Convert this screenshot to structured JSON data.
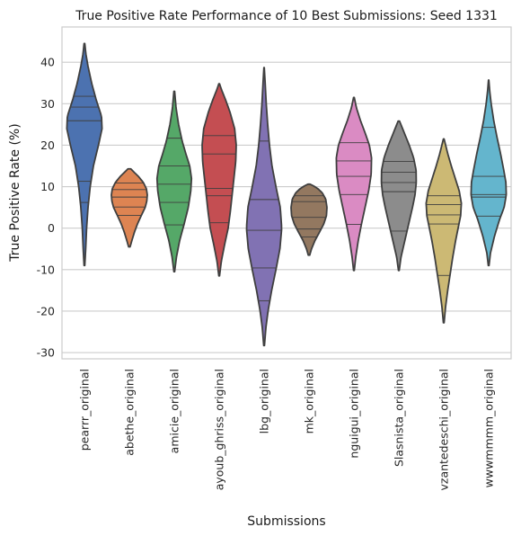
{
  "chart_data": {
    "type": "violin",
    "title": "True Positive Rate Performance of 10 Best Submissions: Seed 1331",
    "xlabel": "Submissions",
    "ylabel": "True Positive Rate (%)",
    "ylim": [
      -31.5,
      48.5
    ],
    "yticks": [
      -30,
      -20,
      -10,
      0,
      10,
      20,
      30,
      40
    ],
    "grid": true,
    "inner": "quartile",
    "categories": [
      "pearrr_original",
      "abethe_original",
      "amicie_original",
      "ayoub_ghriss_original",
      "lbg_original",
      "mk_original",
      "nguigui_original",
      "Slasnista_original",
      "vzantedeschi_original",
      "wwwmmmm_original"
    ],
    "colors": [
      "#4c72b0",
      "#dd8452",
      "#55a868",
      "#c44e52",
      "#8172b3",
      "#937860",
      "#da8bc3",
      "#8c8c8c",
      "#ccb974",
      "#64b5cd"
    ],
    "violins": [
      {
        "min": -9,
        "max": 44.5,
        "width": [
          [
            -9,
            0.02
          ],
          [
            -5,
            0.07
          ],
          [
            0,
            0.12
          ],
          [
            5,
            0.2
          ],
          [
            10,
            0.32
          ],
          [
            15,
            0.5
          ],
          [
            20,
            0.78
          ],
          [
            24,
            0.98
          ],
          [
            27,
            0.95
          ],
          [
            31,
            0.65
          ],
          [
            35,
            0.4
          ],
          [
            39,
            0.2
          ],
          [
            42,
            0.08
          ],
          [
            44.5,
            0.02
          ]
        ],
        "lines": [
          11.3,
          25.9,
          31.8,
          6.2,
          29.2
        ]
      },
      {
        "min": -4.5,
        "max": 14.3,
        "width": [
          [
            -4.5,
            0.04
          ],
          [
            -3,
            0.14
          ],
          [
            -1,
            0.28
          ],
          [
            1,
            0.45
          ],
          [
            3,
            0.66
          ],
          [
            5,
            0.88
          ],
          [
            6.5,
            0.97
          ],
          [
            8,
            1.0
          ],
          [
            9.5,
            0.95
          ],
          [
            11,
            0.78
          ],
          [
            12.5,
            0.5
          ],
          [
            13.5,
            0.26
          ],
          [
            14.3,
            0.08
          ]
        ],
        "lines": [
          5.1,
          7.5,
          9.3,
          3.1,
          10.9
        ]
      },
      {
        "min": -10.5,
        "max": 33,
        "width": [
          [
            -10.5,
            0.02
          ],
          [
            -7,
            0.12
          ],
          [
            -3,
            0.3
          ],
          [
            1,
            0.55
          ],
          [
            5,
            0.78
          ],
          [
            9,
            0.92
          ],
          [
            12,
            0.96
          ],
          [
            15,
            0.86
          ],
          [
            18,
            0.64
          ],
          [
            21,
            0.44
          ],
          [
            25,
            0.24
          ],
          [
            29,
            0.1
          ],
          [
            33,
            0.02
          ]
        ],
        "lines": [
          0.8,
          10.6,
          21.7,
          15.0,
          6.2
        ]
      },
      {
        "min": -11.5,
        "max": 34.8,
        "width": [
          [
            -11.5,
            0.02
          ],
          [
            -8,
            0.12
          ],
          [
            -4,
            0.3
          ],
          [
            0,
            0.5
          ],
          [
            4,
            0.62
          ],
          [
            8,
            0.72
          ],
          [
            12,
            0.82
          ],
          [
            16,
            0.92
          ],
          [
            20,
            0.95
          ],
          [
            24,
            0.86
          ],
          [
            28,
            0.6
          ],
          [
            31,
            0.35
          ],
          [
            33.5,
            0.12
          ],
          [
            34.8,
            0.02
          ]
        ],
        "lines": [
          1.3,
          7.8,
          17.9,
          22.3,
          9.6
        ]
      },
      {
        "min": -28.3,
        "max": 38.7,
        "width": [
          [
            -28.3,
            0.02
          ],
          [
            -24,
            0.1
          ],
          [
            -20,
            0.22
          ],
          [
            -15,
            0.42
          ],
          [
            -10,
            0.66
          ],
          [
            -5,
            0.88
          ],
          [
            0,
            0.98
          ],
          [
            5,
            0.9
          ],
          [
            10,
            0.66
          ],
          [
            15,
            0.44
          ],
          [
            20,
            0.3
          ],
          [
            25,
            0.2
          ],
          [
            30,
            0.12
          ],
          [
            35,
            0.06
          ],
          [
            38.7,
            0.01
          ]
        ],
        "lines": [
          -9.6,
          -0.5,
          6.9,
          21.0,
          -17.5
        ]
      },
      {
        "min": -6.5,
        "max": 10.6,
        "width": [
          [
            -6.5,
            0.04
          ],
          [
            -5,
            0.14
          ],
          [
            -3,
            0.33
          ],
          [
            -1,
            0.58
          ],
          [
            1,
            0.82
          ],
          [
            3,
            0.97
          ],
          [
            5,
            1.0
          ],
          [
            7,
            0.93
          ],
          [
            8.5,
            0.74
          ],
          [
            9.5,
            0.5
          ],
          [
            10.2,
            0.25
          ],
          [
            10.6,
            0.06
          ]
        ],
        "lines": [
          -2.1,
          2.6,
          6.4,
          7.8,
          -0.2
        ]
      },
      {
        "min": -10.2,
        "max": 31.5,
        "width": [
          [
            -10.2,
            0.02
          ],
          [
            -7,
            0.1
          ],
          [
            -3,
            0.24
          ],
          [
            1,
            0.42
          ],
          [
            5,
            0.62
          ],
          [
            9,
            0.82
          ],
          [
            13,
            0.96
          ],
          [
            17,
            0.98
          ],
          [
            20,
            0.86
          ],
          [
            23,
            0.62
          ],
          [
            26,
            0.36
          ],
          [
            29,
            0.14
          ],
          [
            31.5,
            0.02
          ]
        ],
        "lines": [
          0.9,
          8.1,
          12.5,
          16.2,
          20.6
        ]
      },
      {
        "min": -10.2,
        "max": 25.8,
        "width": [
          [
            -10.2,
            0.02
          ],
          [
            -7,
            0.12
          ],
          [
            -4,
            0.28
          ],
          [
            -1,
            0.44
          ],
          [
            2,
            0.6
          ],
          [
            5,
            0.76
          ],
          [
            8,
            0.9
          ],
          [
            11,
            0.97
          ],
          [
            14,
            0.96
          ],
          [
            17,
            0.82
          ],
          [
            20,
            0.58
          ],
          [
            23,
            0.3
          ],
          [
            25.8,
            0.04
          ]
        ],
        "lines": [
          -0.7,
          8.8,
          13.5,
          16.1,
          11.0
        ]
      },
      {
        "min": -22.8,
        "max": 21.5,
        "width": [
          [
            -22.8,
            0.02
          ],
          [
            -19,
            0.1
          ],
          [
            -15,
            0.22
          ],
          [
            -11,
            0.36
          ],
          [
            -7,
            0.5
          ],
          [
            -3,
            0.66
          ],
          [
            0,
            0.8
          ],
          [
            3,
            0.94
          ],
          [
            6,
            0.98
          ],
          [
            9,
            0.86
          ],
          [
            12,
            0.64
          ],
          [
            15,
            0.42
          ],
          [
            18,
            0.22
          ],
          [
            21.5,
            0.02
          ]
        ],
        "lines": [
          -11.4,
          1.0,
          5.7,
          3.2,
          7.8
        ]
      },
      {
        "min": -9,
        "max": 35.7,
        "width": [
          [
            -9,
            0.02
          ],
          [
            -6,
            0.1
          ],
          [
            -2,
            0.32
          ],
          [
            2,
            0.6
          ],
          [
            5,
            0.86
          ],
          [
            8,
            0.98
          ],
          [
            11,
            0.96
          ],
          [
            14,
            0.84
          ],
          [
            18,
            0.66
          ],
          [
            22,
            0.46
          ],
          [
            26,
            0.28
          ],
          [
            30,
            0.14
          ],
          [
            33,
            0.06
          ],
          [
            35.7,
            0.01
          ]
        ],
        "lines": [
          2.9,
          8.1,
          12.5,
          24.3,
          7.5
        ]
      }
    ]
  }
}
